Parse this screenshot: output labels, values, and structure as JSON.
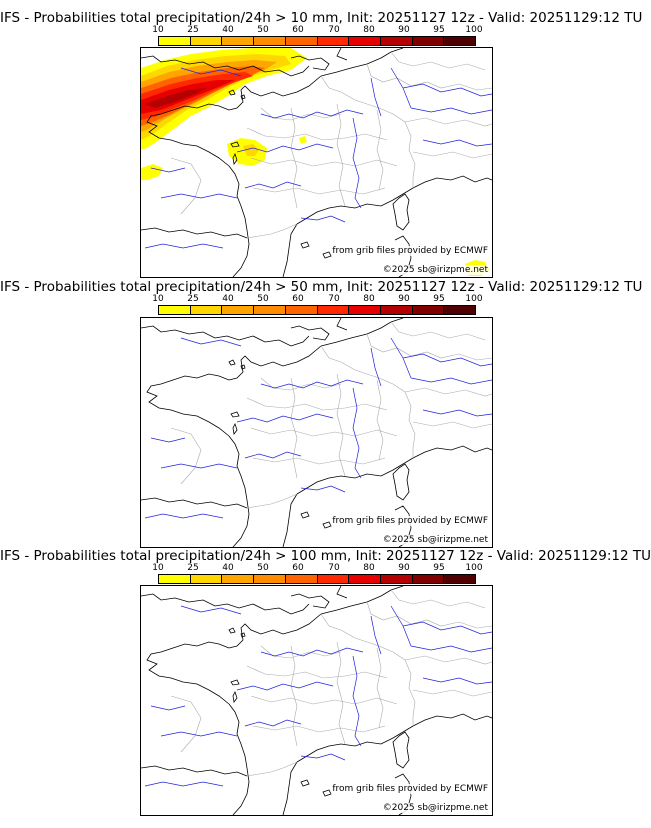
{
  "colors": {
    "scale": [
      "#ffff00",
      "#ffd700",
      "#ffa500",
      "#ff8c00",
      "#ff6400",
      "#ff2800",
      "#e60000",
      "#b40000",
      "#800000",
      "#500000"
    ],
    "coast": "#000000",
    "borders": "#aaaaaa",
    "rivers": "#2222dd"
  },
  "scale_labels": [
    "10",
    "25",
    "40",
    "50",
    "60",
    "70",
    "80",
    "90",
    "95",
    "100"
  ],
  "panels": [
    {
      "title": "IFS - Probabilities total precipitation/24h > 10 mm, Init: 20251127 12z - Valid: 20251129:12 TU",
      "credit_source": "from grib files provided by ECMWF",
      "credit_copy": "©2025 sb@irizpme.net",
      "has_precip": true
    },
    {
      "title": "IFS - Probabilities total precipitation/24h > 50 mm, Init: 20251127 12z - Valid: 20251129:12 TU",
      "credit_source": "from grib files provided by ECMWF",
      "credit_copy": "©2025 sb@irizpme.net",
      "has_precip": false
    },
    {
      "title": "IFS - Probabilities total precipitation/24h > 100 mm, Init: 20251127 12z - Valid: 20251129:12 TU",
      "credit_source": "from grib files provided by ECMWF",
      "credit_copy": "©2025 sb@irizpme.net",
      "has_precip": false
    }
  ]
}
